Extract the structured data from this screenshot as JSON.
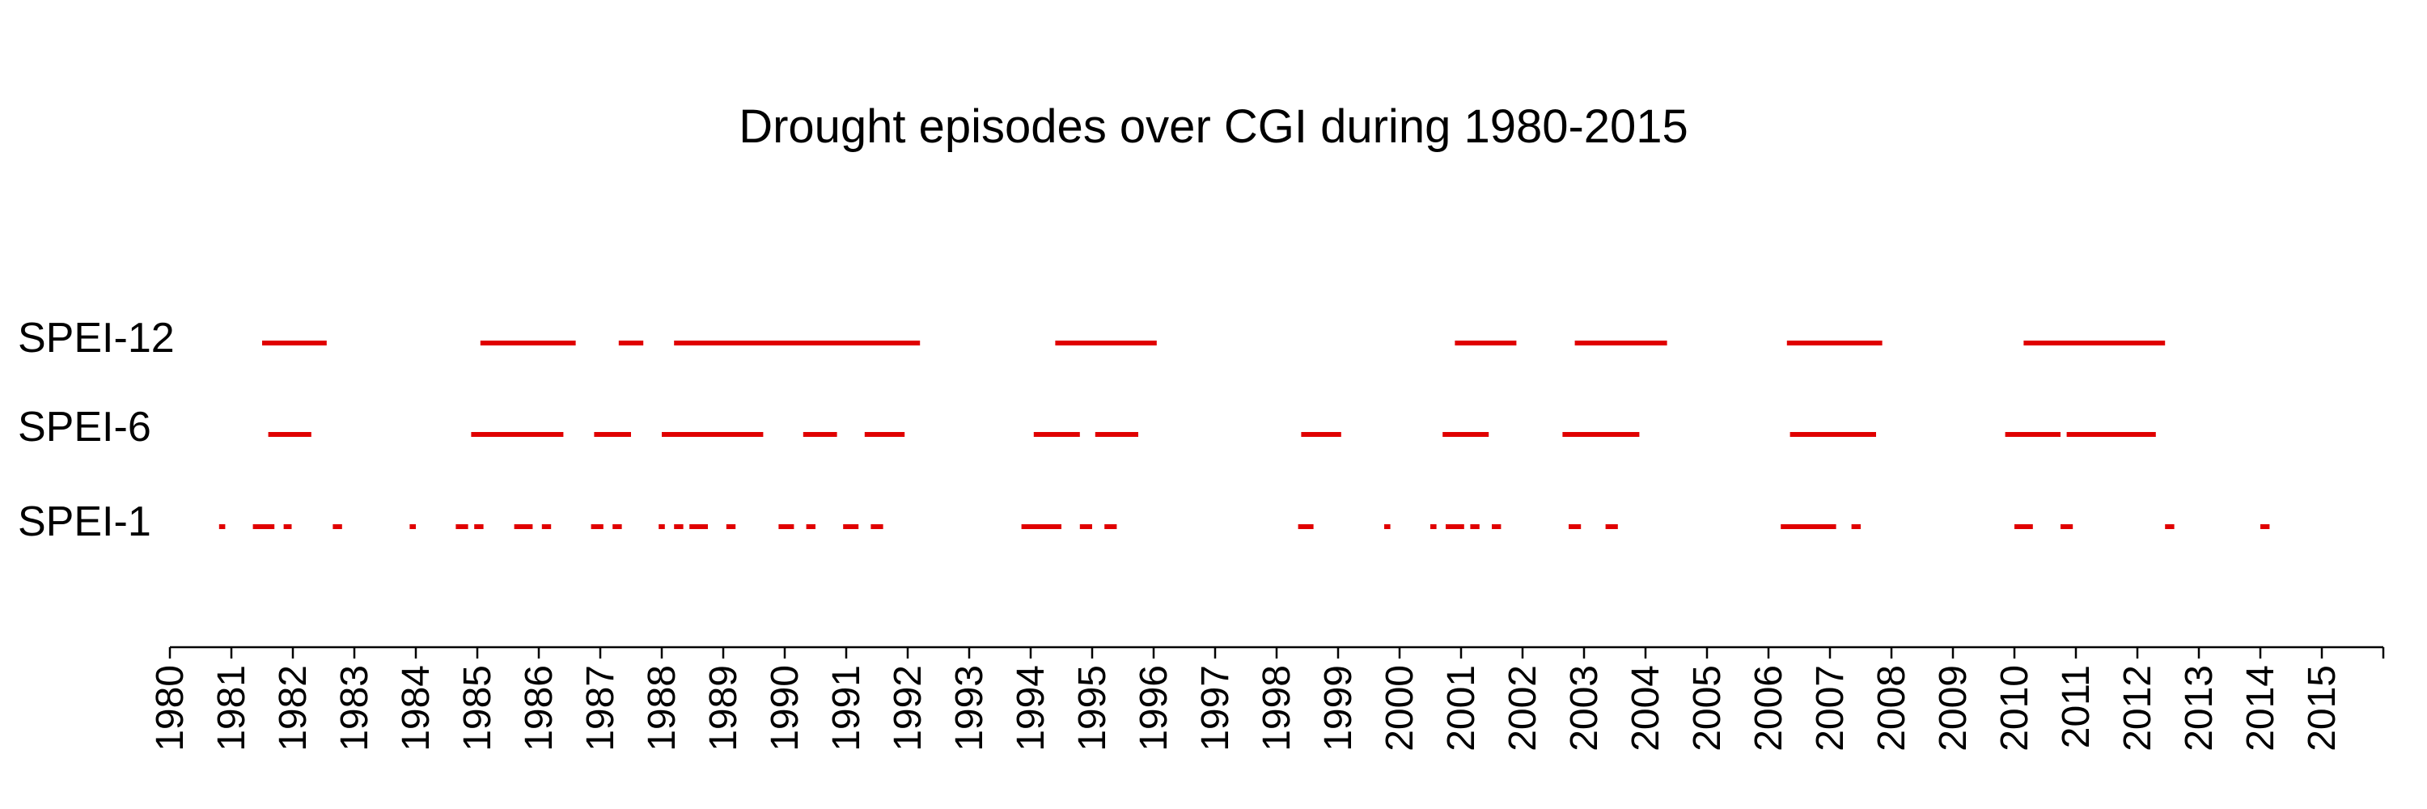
{
  "chart_data": {
    "type": "timeline",
    "title": "Drought episodes over CGI during 1980-2015",
    "x_ticks": [
      "1980",
      "1981",
      "1982",
      "1983",
      "1984",
      "1985",
      "1986",
      "1987",
      "1988",
      "1989",
      "1990",
      "1991",
      "1992",
      "1993",
      "1994",
      "1995",
      "1996",
      "1997",
      "1998",
      "1999",
      "2000",
      "2001",
      "2002",
      "2003",
      "2004",
      "2005",
      "2006",
      "2007",
      "2008",
      "2009",
      "2010",
      "2011",
      "2012",
      "2013",
      "2014",
      "2015"
    ],
    "xlim": [
      1980,
      2016
    ],
    "color": "#e00000",
    "series": [
      {
        "name": "SPEI-12",
        "episodes": [
          [
            1981.5,
            1982.55
          ],
          [
            1985.05,
            1986.6
          ],
          [
            1987.3,
            1987.7
          ],
          [
            1988.2,
            1990.25
          ],
          [
            1990.25,
            1992.2
          ],
          [
            1994.4,
            1996.05
          ],
          [
            2000.9,
            2001.9
          ],
          [
            2002.85,
            2004.35
          ],
          [
            2006.3,
            2007.85
          ],
          [
            2010.15,
            2012.45
          ]
        ]
      },
      {
        "name": "SPEI-6",
        "episodes": [
          [
            1981.6,
            1982.3
          ],
          [
            1984.9,
            1986.4
          ],
          [
            1986.9,
            1987.5
          ],
          [
            1988.0,
            1989.65
          ],
          [
            1990.3,
            1990.85
          ],
          [
            1991.3,
            1991.95
          ],
          [
            1994.05,
            1994.8
          ],
          [
            1995.05,
            1995.75
          ],
          [
            1998.4,
            1999.05
          ],
          [
            2000.7,
            2001.45
          ],
          [
            2002.65,
            2003.9
          ],
          [
            2006.35,
            2007.75
          ],
          [
            2009.85,
            2010.75
          ],
          [
            2010.85,
            2012.3
          ]
        ]
      },
      {
        "name": "SPEI-1",
        "episodes": [
          [
            1980.8,
            1980.9
          ],
          [
            1981.35,
            1981.7
          ],
          [
            1981.85,
            1981.98
          ],
          [
            1982.65,
            1982.8
          ],
          [
            1983.9,
            1984.0
          ],
          [
            1984.65,
            1984.85
          ],
          [
            1984.95,
            1985.1
          ],
          [
            1985.6,
            1985.9
          ],
          [
            1986.05,
            1986.2
          ],
          [
            1986.85,
            1987.05
          ],
          [
            1987.2,
            1987.35
          ],
          [
            1987.95,
            1988.05
          ],
          [
            1988.2,
            1988.35
          ],
          [
            1988.45,
            1988.75
          ],
          [
            1989.05,
            1989.2
          ],
          [
            1989.9,
            1990.15
          ],
          [
            1990.35,
            1990.5
          ],
          [
            1990.95,
            1991.2
          ],
          [
            1991.4,
            1991.6
          ],
          [
            1993.85,
            1994.5
          ],
          [
            1994.8,
            1995.0
          ],
          [
            1995.2,
            1995.4
          ],
          [
            1998.35,
            1998.6
          ],
          [
            1999.75,
            1999.85
          ],
          [
            2000.5,
            2000.6
          ],
          [
            2000.75,
            2001.05
          ],
          [
            2001.15,
            2001.3
          ],
          [
            2001.5,
            2001.65
          ],
          [
            2002.75,
            2002.95
          ],
          [
            2003.35,
            2003.55
          ],
          [
            2006.2,
            2007.1
          ],
          [
            2007.35,
            2007.5
          ],
          [
            2010.0,
            2010.3
          ],
          [
            2010.75,
            2010.95
          ],
          [
            2012.45,
            2012.6
          ],
          [
            2014.0,
            2014.15
          ]
        ]
      }
    ]
  }
}
